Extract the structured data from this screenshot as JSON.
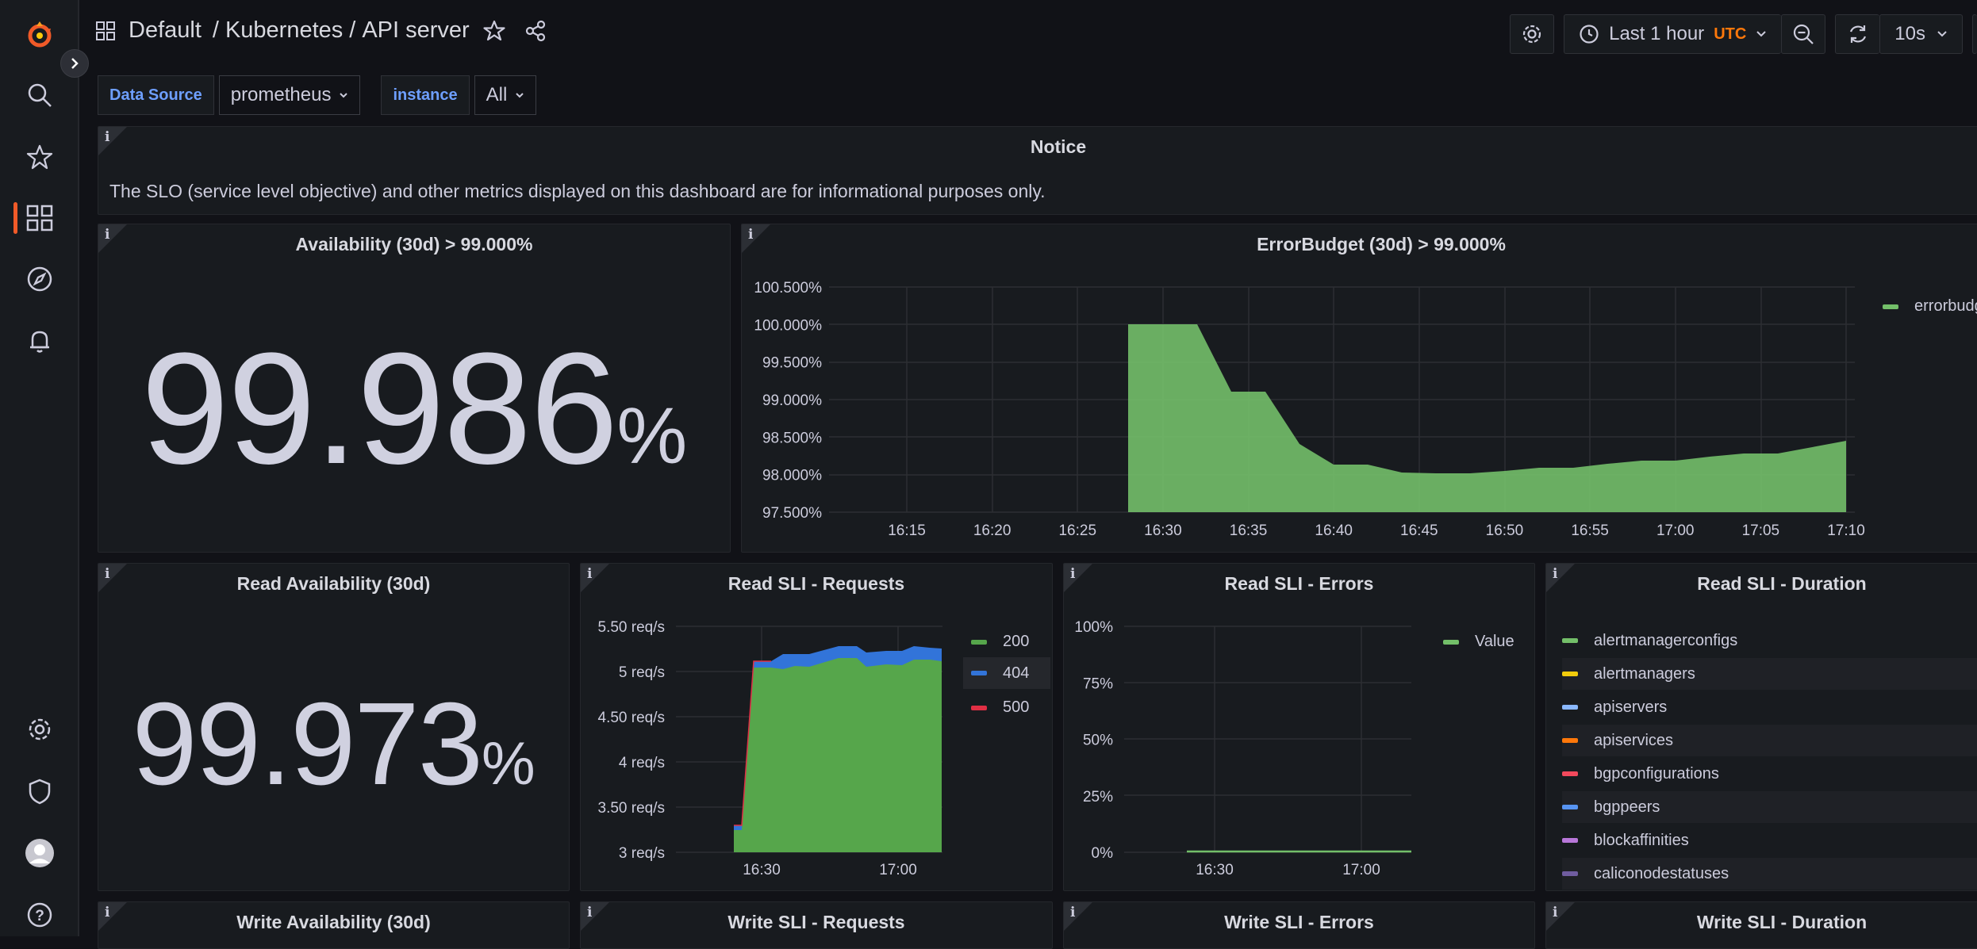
{
  "breadcrumb": {
    "folder": "Default",
    "sep1": "/",
    "section": "Kubernetes",
    "sep2": "/",
    "title": "API server"
  },
  "toolbar": {
    "time_range": "Last 1 hour",
    "timezone": "UTC",
    "refresh_interval": "10s"
  },
  "variables": [
    {
      "label": "Data Source",
      "value": "prometheus"
    },
    {
      "label": "instance",
      "value": "All"
    }
  ],
  "notice": {
    "title": "Notice",
    "text": "The SLO (service level objective) and other metrics displayed on this dashboard are for informational purposes only."
  },
  "availability": {
    "title": "Availability (30d) > 99.000%",
    "value": "99.986",
    "unit": "%"
  },
  "error_budget": {
    "title": "ErrorBudget (30d) > 99.000%",
    "legend": "errorbudg",
    "color": "#73bf69",
    "y_ticks": [
      "100.500%",
      "100.000%",
      "99.500%",
      "99.000%",
      "98.500%",
      "98.000%",
      "97.500%"
    ],
    "x_ticks": [
      "16:15",
      "16:20",
      "16:25",
      "16:30",
      "16:35",
      "16:40",
      "16:45",
      "16:50",
      "16:55",
      "17:00",
      "17:05",
      "17:10"
    ]
  },
  "read_availability": {
    "title": "Read Availability (30d)",
    "value": "99.973",
    "unit": "%"
  },
  "read_requests": {
    "title": "Read SLI - Requests",
    "y_ticks": [
      "5.50 req/s",
      "5 req/s",
      "4.50 req/s",
      "4 req/s",
      "3.50 req/s",
      "3 req/s"
    ],
    "x_ticks": [
      "16:30",
      "17:00"
    ],
    "legend": [
      {
        "label": "200",
        "color": "#56a64b"
      },
      {
        "label": "404",
        "color": "#3274d9"
      },
      {
        "label": "500",
        "color": "#e02f44"
      }
    ]
  },
  "read_errors": {
    "title": "Read SLI - Errors",
    "y_ticks": [
      "100%",
      "75%",
      "50%",
      "25%",
      "0%"
    ],
    "x_ticks": [
      "16:30",
      "17:00"
    ],
    "legend": "Value",
    "color": "#73bf69"
  },
  "read_duration": {
    "title": "Read SLI - Duration",
    "items": [
      {
        "label": "alertmanagerconfigs",
        "color": "#73bf69"
      },
      {
        "label": "alertmanagers",
        "color": "#f2cc0c"
      },
      {
        "label": "apiservers",
        "color": "#8ab8ff"
      },
      {
        "label": "apiservices",
        "color": "#ff780a"
      },
      {
        "label": "bgpconfigurations",
        "color": "#f2495c"
      },
      {
        "label": "bgppeers",
        "color": "#5794f2"
      },
      {
        "label": "blockaffinities",
        "color": "#b877d9"
      },
      {
        "label": "caliconodestatuses",
        "color": "#705da0"
      }
    ]
  },
  "bottom_panels": [
    "Write Availability (30d)",
    "Write SLI - Requests",
    "Write SLI - Errors",
    "Write SLI - Duration"
  ],
  "colors": {
    "accent": "#f05a28",
    "link": "#6e9fff",
    "timezone": "#ff780a"
  }
}
